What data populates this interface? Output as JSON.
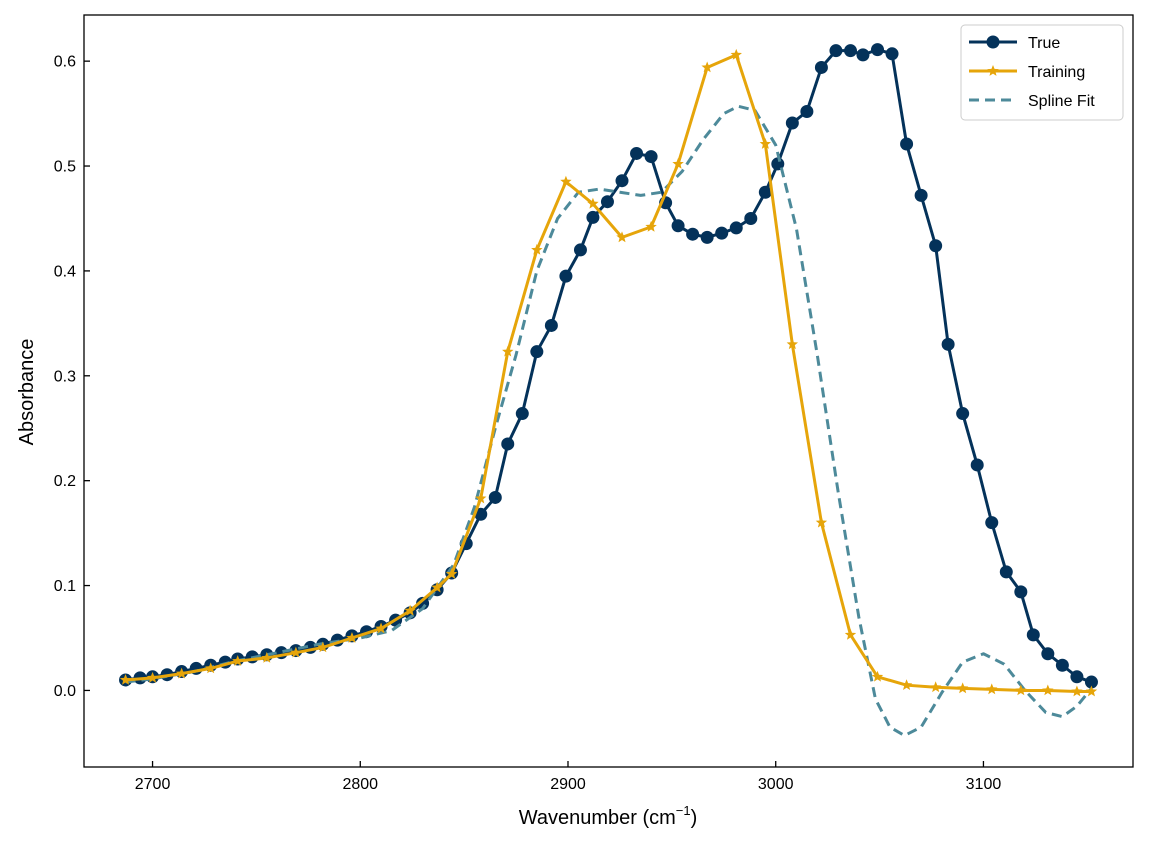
{
  "chart_data": {
    "type": "line",
    "title": "",
    "xlabel": "Wavenumber (cm",
    "xlabel_sup": "−1",
    "xlabel_end": ")",
    "ylabel": "Absorbance",
    "xlim": [
      2667,
      3172
    ],
    "ylim": [
      -0.073,
      0.644
    ],
    "xticks": [
      2700,
      2800,
      2900,
      3000,
      3100
    ],
    "yticks": [
      0.0,
      0.1,
      0.2,
      0.3,
      0.4,
      0.5,
      0.6
    ],
    "grid": false,
    "legend_position": "top-right",
    "series": [
      {
        "name": "True",
        "color": "#04325a",
        "style": "solid-line-circle-markers",
        "x": [
          2687,
          2694,
          2700,
          2707,
          2714,
          2721,
          2728,
          2735,
          2741,
          2748,
          2755,
          2762,
          2769,
          2776,
          2782,
          2789,
          2796,
          2803,
          2810,
          2817,
          2824,
          2830,
          2837,
          2844,
          2851,
          2858,
          2865,
          2871,
          2878,
          2885,
          2892,
          2899,
          2906,
          2912,
          2919,
          2926,
          2933,
          2940,
          2947,
          2953,
          2960,
          2967,
          2974,
          2981,
          2988,
          2995,
          3001,
          3008,
          3015,
          3022,
          3029,
          3036,
          3042,
          3049,
          3056,
          3063,
          3070,
          3077,
          3083,
          3090,
          3097,
          3104,
          3111,
          3118,
          3124,
          3131,
          3138,
          3145,
          3152
        ],
        "y": [
          0.01,
          0.012,
          0.013,
          0.015,
          0.018,
          0.021,
          0.024,
          0.027,
          0.03,
          0.032,
          0.034,
          0.036,
          0.038,
          0.041,
          0.044,
          0.048,
          0.052,
          0.056,
          0.061,
          0.067,
          0.074,
          0.083,
          0.096,
          0.112,
          0.14,
          0.168,
          0.184,
          0.235,
          0.264,
          0.323,
          0.348,
          0.395,
          0.42,
          0.451,
          0.466,
          0.486,
          0.512,
          0.509,
          0.465,
          0.443,
          0.435,
          0.432,
          0.436,
          0.441,
          0.45,
          0.475,
          0.502,
          0.541,
          0.552,
          0.594,
          0.61,
          0.61,
          0.606,
          0.611,
          0.607,
          0.521,
          0.472,
          0.424,
          0.33,
          0.264,
          0.215,
          0.16,
          0.113,
          0.094,
          0.053,
          0.035,
          0.024,
          0.013,
          0.008
        ]
      },
      {
        "name": "Training",
        "color": "#e6a50a",
        "style": "solid-line-star-markers",
        "x": [
          2687,
          2700,
          2714,
          2728,
          2741,
          2755,
          2769,
          2782,
          2796,
          2810,
          2824,
          2837,
          2844,
          2858,
          2871,
          2885,
          2899,
          2912,
          2926,
          2940,
          2953,
          2967,
          2981,
          2995,
          3008,
          3022,
          3036,
          3049,
          3063,
          3077,
          3090,
          3104,
          3118,
          3131,
          3145,
          3152
        ],
        "y": [
          0.01,
          0.012,
          0.016,
          0.021,
          0.028,
          0.031,
          0.036,
          0.041,
          0.05,
          0.059,
          0.076,
          0.098,
          0.111,
          0.183,
          0.323,
          0.42,
          0.485,
          0.464,
          0.432,
          0.442,
          0.502,
          0.594,
          0.606,
          0.521,
          0.33,
          0.16,
          0.053,
          0.013,
          0.005,
          0.003,
          0.002,
          0.001,
          0.0,
          0.0,
          -0.001,
          -0.001
        ]
      },
      {
        "name": "Spline Fit",
        "color": "#4d8a9a",
        "style": "dashed-line",
        "x": [
          2687,
          2700,
          2720,
          2740,
          2760,
          2780,
          2800,
          2815,
          2830,
          2845,
          2855,
          2865,
          2875,
          2885,
          2895,
          2905,
          2915,
          2925,
          2935,
          2945,
          2955,
          2965,
          2975,
          2982,
          2990,
          3000,
          3010,
          3020,
          3030,
          3040,
          3048,
          3055,
          3062,
          3070,
          3080,
          3090,
          3100,
          3110,
          3120,
          3130,
          3138,
          3145,
          3152
        ],
        "y": [
          0.008,
          0.011,
          0.018,
          0.028,
          0.036,
          0.044,
          0.05,
          0.057,
          0.078,
          0.12,
          0.175,
          0.25,
          0.32,
          0.4,
          0.45,
          0.475,
          0.478,
          0.475,
          0.472,
          0.475,
          0.495,
          0.525,
          0.55,
          0.557,
          0.553,
          0.52,
          0.44,
          0.32,
          0.19,
          0.07,
          -0.008,
          -0.035,
          -0.043,
          -0.035,
          -0.002,
          0.027,
          0.035,
          0.025,
          0.0,
          -0.021,
          -0.025,
          -0.015,
          0.002
        ]
      }
    ]
  }
}
